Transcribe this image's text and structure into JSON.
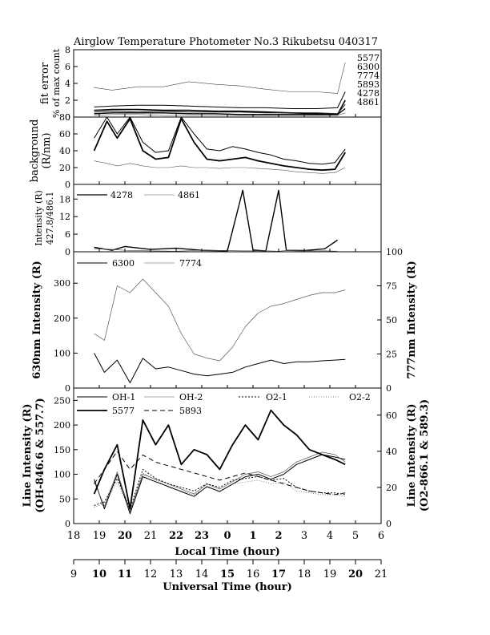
{
  "title": "Airglow Temperature Photometer No.3  Rikubetsu  040317",
  "x_axes": {
    "local": {
      "label": "Local Time (hour)",
      "ticks": [
        "18",
        "19",
        "20",
        "21",
        "22",
        "23",
        "0",
        "1",
        "2",
        "3",
        "4",
        "5",
        "6"
      ]
    },
    "universal": {
      "label": "Universal Time (hour)",
      "ticks": [
        "9",
        "10",
        "11",
        "12",
        "13",
        "14",
        "15",
        "16",
        "17",
        "18",
        "19",
        "20",
        "21"
      ]
    }
  },
  "panels": {
    "fit": {
      "ylabel1": "fit error",
      "ylabel2": "% of max count",
      "yticks": [
        "0",
        "2",
        "4",
        "6",
        "8"
      ]
    },
    "background": {
      "ylabel1": "background",
      "ylabel2": "(R/nm)",
      "yticks": [
        "0",
        "20",
        "40",
        "60",
        "80"
      ]
    },
    "p427": {
      "ylabel1": "Intensity (R)",
      "ylabel2": "427.8/486.1",
      "yticks": [
        "0",
        "6",
        "12",
        "18"
      ],
      "legend": [
        "4278",
        "4861"
      ]
    },
    "p630": {
      "ylabel_left": "630nm Intensity (R)",
      "ylabel_right": "777nm Intensity (R)",
      "yticks_left": [
        "0",
        "100",
        "200",
        "300"
      ],
      "yticks_right": [
        "0",
        "25",
        "50",
        "75",
        "100"
      ],
      "legend": [
        "6300",
        "7774"
      ]
    },
    "line": {
      "ylabel_left1": "Line Intensity (R)",
      "ylabel_left2": "(OH-846.6 & 557.7)",
      "ylabel_right1": "Line Intensity (R)",
      "ylabel_right2": "(O2-866.1 & 589.3)",
      "yticks_left": [
        "0",
        "50",
        "100",
        "150",
        "200",
        "250"
      ],
      "yticks_right": [
        "0",
        "20",
        "40",
        "60"
      ],
      "legend": [
        "OH-1",
        "OH-2",
        "O2-1",
        "O2-2",
        "5577",
        "5893"
      ]
    }
  },
  "fit_legend": [
    "5577",
    "6300",
    "7774",
    "5893",
    "4278",
    "4861"
  ],
  "chart_data": [
    {
      "type": "line",
      "panel": "fit error",
      "ylim": [
        0,
        8
      ],
      "x": [
        18.8,
        19.5,
        20.5,
        21.5,
        22.5,
        23.5,
        0.5,
        1.5,
        2.5,
        3.5,
        4.3,
        4.6
      ],
      "series": [
        {
          "name": "5577",
          "values": [
            0.8,
            0.9,
            0.9,
            0.8,
            0.8,
            0.7,
            0.7,
            0.6,
            0.5,
            0.4,
            0.3,
            2.0
          ]
        },
        {
          "name": "6300",
          "values": [
            1.2,
            1.3,
            1.4,
            1.4,
            1.3,
            1.2,
            1.1,
            1.1,
            1.0,
            1.0,
            1.1,
            3.0
          ]
        },
        {
          "name": "7774",
          "values": [
            3.5,
            3.2,
            3.6,
            3.6,
            4.2,
            3.9,
            3.7,
            3.3,
            3.0,
            3.0,
            2.8,
            6.5
          ]
        },
        {
          "name": "5893",
          "values": [
            0.4,
            0.5,
            0.5,
            0.5,
            0.4,
            0.4,
            0.3,
            0.3,
            0.3,
            0.3,
            0.3,
            1.0
          ]
        },
        {
          "name": "4278",
          "values": [
            0.6,
            0.7,
            0.6,
            0.7,
            0.6,
            0.6,
            0.6,
            0.5,
            0.5,
            0.5,
            0.4,
            1.5
          ]
        },
        {
          "name": "4861",
          "values": [
            0.2,
            0.3,
            0.3,
            0.2,
            0.2,
            0.2,
            0.2,
            0.2,
            0.2,
            0.2,
            0.2,
            0.5
          ]
        }
      ]
    },
    {
      "type": "line",
      "panel": "background",
      "ylim": [
        0,
        80
      ],
      "x": [
        18.8,
        19.3,
        19.7,
        20.2,
        20.7,
        21.2,
        21.7,
        22.2,
        22.7,
        23.2,
        23.7,
        0.2,
        0.7,
        1.2,
        1.7,
        2.2,
        2.7,
        3.2,
        3.7,
        4.2,
        4.6
      ],
      "series": [
        {
          "values": [
            40,
            75,
            55,
            78,
            40,
            30,
            32,
            78,
            50,
            30,
            28,
            30,
            32,
            28,
            25,
            22,
            20,
            18,
            17,
            18,
            38
          ]
        },
        {
          "values": [
            55,
            80,
            60,
            80,
            50,
            38,
            40,
            80,
            60,
            42,
            40,
            45,
            42,
            38,
            35,
            30,
            28,
            25,
            24,
            26,
            42
          ]
        },
        {
          "values": [
            28,
            25,
            22,
            25,
            22,
            20,
            20,
            22,
            20,
            20,
            19,
            20,
            20,
            19,
            18,
            17,
            15,
            14,
            13,
            14,
            20
          ]
        }
      ]
    },
    {
      "type": "line",
      "panel": "427.8/486.1",
      "ylim": [
        0,
        23
      ],
      "x": [
        18.8,
        19.5,
        20.0,
        21.0,
        22.0,
        23.0,
        0.0,
        0.6,
        1.0,
        1.5,
        2.0,
        2.3,
        3.0,
        3.8,
        4.3
      ],
      "series": [
        {
          "name": "4278",
          "values": [
            1.5,
            0.5,
            1.8,
            0.8,
            1.2,
            0.5,
            0.3,
            21.0,
            0.6,
            0.3,
            21.0,
            0.5,
            0.4,
            1.0,
            4.0
          ]
        },
        {
          "name": "4861",
          "values": [
            1.0,
            0.8,
            0.5,
            0.3,
            0.2,
            0.5,
            0.4,
            0.3,
            0.3,
            0.3,
            0.2,
            0.4,
            0.3,
            0.3,
            0.2
          ]
        }
      ]
    },
    {
      "type": "line",
      "panel": "630nm / 777nm",
      "ylim": [
        0,
        390
      ],
      "ylim_right": [
        0,
        100
      ],
      "x": [
        18.8,
        19.2,
        19.7,
        20.2,
        20.7,
        21.2,
        21.7,
        22.2,
        22.7,
        23.2,
        23.7,
        0.2,
        0.7,
        1.2,
        1.7,
        2.2,
        2.7,
        3.2,
        3.7,
        4.2,
        4.6
      ],
      "series": [
        {
          "name": "6300",
          "values": [
            100,
            45,
            80,
            15,
            85,
            55,
            60,
            50,
            40,
            35,
            40,
            45,
            60,
            70,
            80,
            70,
            75,
            75,
            78,
            80,
            82
          ]
        },
        {
          "name": "7774",
          "values": [
            40,
            35,
            75,
            70,
            80,
            70,
            60,
            40,
            25,
            22,
            20,
            30,
            45,
            55,
            60,
            62,
            65,
            68,
            70,
            70,
            72
          ]
        }
      ]
    },
    {
      "type": "line",
      "panel": "Line Intensity",
      "ylim": [
        0,
        275
      ],
      "ylim_right": [
        0,
        75
      ],
      "x": [
        18.8,
        19.2,
        19.7,
        20.2,
        20.7,
        21.2,
        21.7,
        22.2,
        22.7,
        23.2,
        23.7,
        0.2,
        0.7,
        1.2,
        1.7,
        2.2,
        2.7,
        3.2,
        3.7,
        4.2,
        4.6
      ],
      "series": [
        {
          "name": "OH-1",
          "values": [
            90,
            30,
            100,
            20,
            95,
            85,
            75,
            65,
            55,
            75,
            65,
            80,
            95,
            100,
            90,
            100,
            120,
            130,
            140,
            135,
            130
          ]
        },
        {
          "name": "OH-2",
          "values": [
            85,
            35,
            105,
            25,
            100,
            90,
            80,
            70,
            60,
            80,
            70,
            85,
            100,
            105,
            95,
            105,
            125,
            135,
            145,
            140,
            125
          ]
        },
        {
          "name": "O2-1",
          "values": [
            10,
            12,
            25,
            8,
            30,
            25,
            22,
            20,
            18,
            22,
            20,
            24,
            25,
            26,
            24,
            25,
            20,
            18,
            17,
            17,
            16
          ]
        },
        {
          "name": "O2-2",
          "values": [
            9,
            11,
            23,
            7,
            28,
            24,
            20,
            18,
            16,
            20,
            18,
            22,
            23,
            24,
            22,
            23,
            18,
            17,
            16,
            16,
            15
          ]
        },
        {
          "name": "5577",
          "values": [
            60,
            110,
            160,
            30,
            210,
            160,
            200,
            120,
            150,
            140,
            110,
            160,
            200,
            170,
            230,
            200,
            180,
            150,
            140,
            130,
            120
          ]
        },
        {
          "name": "5893",
          "values": [
            22,
            30,
            40,
            30,
            38,
            34,
            32,
            30,
            28,
            26,
            24,
            26,
            28,
            26,
            24,
            22,
            20,
            18,
            17,
            16,
            17
          ]
        }
      ]
    }
  ]
}
